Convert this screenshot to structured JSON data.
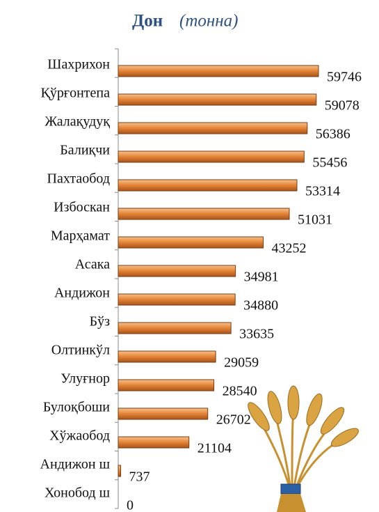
{
  "chart_data": {
    "type": "bar",
    "orientation": "horizontal",
    "title": "Дон",
    "subtitle": "(тонна)",
    "categories": [
      "Шахрихон",
      "Қўрғонтепа",
      "Жалақудуқ",
      "Балиқчи",
      "Пахтаобод",
      "Избоскан",
      "Марҳамат",
      "Асака",
      "Андижон",
      "Бўз",
      "Олтинкўл",
      "Улуғнор",
      "Булоқбоши",
      "Хўжаобод",
      "Андижон ш",
      "Хонобод ш"
    ],
    "values": [
      59746,
      59078,
      56386,
      55456,
      53314,
      51031,
      43252,
      34981,
      34880,
      33635,
      29059,
      28540,
      26702,
      21104,
      737,
      0
    ],
    "color": "#e07b27"
  }
}
